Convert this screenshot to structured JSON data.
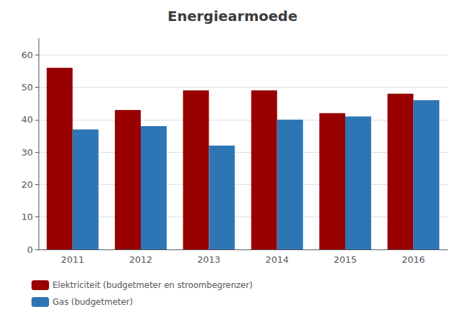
{
  "chart_data": {
    "type": "bar",
    "title": "Energiearmoede",
    "categories": [
      "2011",
      "2012",
      "2013",
      "2014",
      "2015",
      "2016"
    ],
    "series": [
      {
        "name": "Elektriciteit (budgetmeter en stroombegrenzer)",
        "color": "#990000",
        "values": [
          56,
          43,
          49,
          49,
          42,
          48
        ]
      },
      {
        "name": "Gas (budgetmeter)",
        "color": "#2E75B6",
        "values": [
          37,
          38,
          32,
          40,
          41,
          46
        ]
      }
    ],
    "ylim": [
      0,
      65
    ],
    "yticks": [
      0,
      10,
      20,
      30,
      40,
      50,
      60
    ],
    "grid": true,
    "legend": "bottom-left"
  }
}
